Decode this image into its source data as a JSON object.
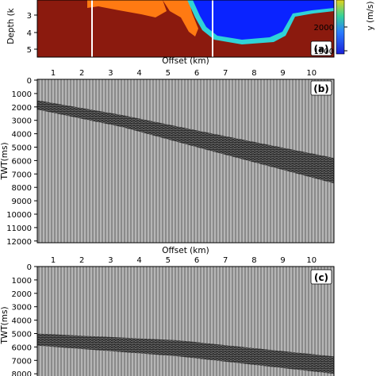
{
  "chart_data": [
    {
      "panel": "(a)",
      "type": "heatmap",
      "description_kind": "velocity model",
      "ylabel": "Depth (k",
      "xlabel": "Offset (km)",
      "x_ticks": [
        1,
        2,
        3,
        4,
        5,
        6,
        7,
        8,
        9,
        10
      ],
      "y_ticks": [
        3,
        4,
        5
      ],
      "colorbar": {
        "label": "y (m/s)",
        "ticks": [
          2000,
          1500
        ],
        "range": [
          1500,
          2500
        ]
      },
      "colors": {
        "background": "#8b1a0e",
        "water": "#0a23ff",
        "mid": "#ff7a12",
        "cyan": "#2fd3d7"
      },
      "vertical_lines_x": [
        2.5,
        6.8
      ]
    },
    {
      "panel": "(b)",
      "type": "heatmap",
      "description_kind": "seismic section",
      "xlabel": "Offset (km)",
      "ylabel": "TWT(ms)",
      "x_ticks": [
        1,
        2,
        3,
        4,
        5,
        6,
        7,
        8,
        9,
        10
      ],
      "y_ticks": [
        0,
        1000,
        2000,
        3000,
        4000,
        5000,
        6000,
        7000,
        8000,
        9000,
        10000,
        11000,
        12000
      ],
      "ylim": [
        0,
        12000
      ],
      "reflector_twt_ms": [
        {
          "x": 0,
          "top": 1500,
          "bottom": 2200
        },
        {
          "x": 3,
          "top": 2600,
          "bottom": 3500
        },
        {
          "x": 6,
          "top": 3900,
          "bottom": 5200
        },
        {
          "x": 10.5,
          "top": 5800,
          "bottom": 7700
        }
      ]
    },
    {
      "panel": "(c)",
      "type": "heatmap",
      "description_kind": "seismic section",
      "xlabel": "Offset (km)",
      "ylabel": "TWT(ms)",
      "x_ticks": [
        1,
        2,
        3,
        4,
        5,
        6,
        7,
        8,
        9,
        10
      ],
      "y_ticks": [
        0,
        1000,
        2000,
        3000,
        4000,
        5000,
        6000,
        7000,
        8000
      ],
      "ylim": [
        0,
        8000
      ],
      "reflector_twt_ms": [
        {
          "x": 0,
          "top": 5000,
          "bottom": 5900
        },
        {
          "x": 5,
          "top": 5500,
          "bottom": 6700
        },
        {
          "x": 10.5,
          "top": 6700,
          "bottom": 8000
        }
      ]
    }
  ]
}
